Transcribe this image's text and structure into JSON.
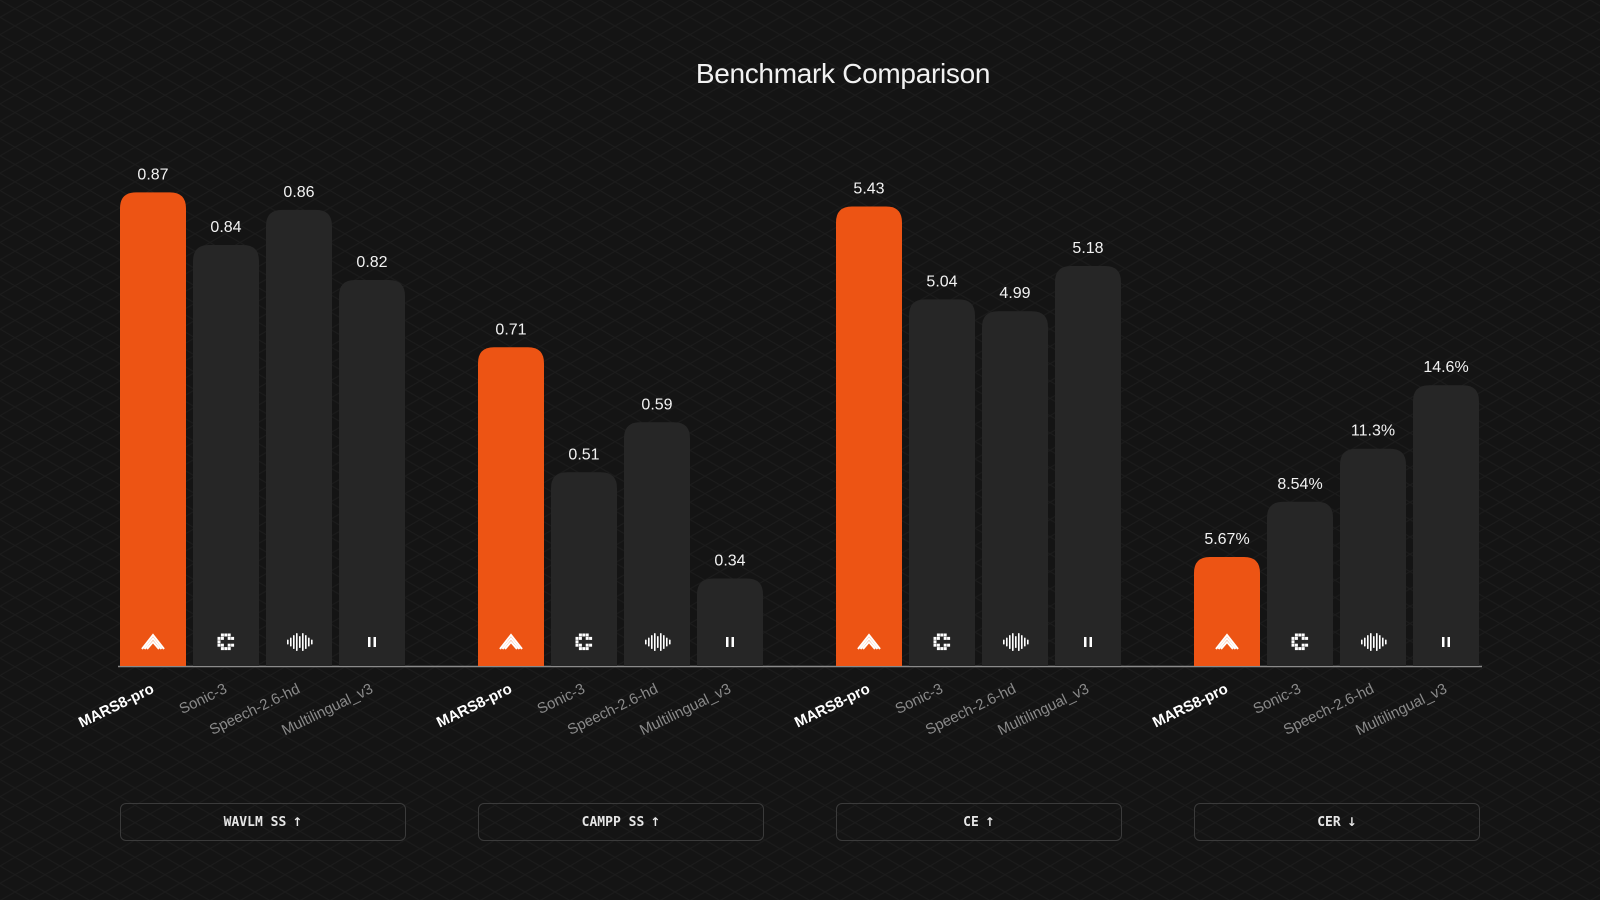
{
  "title": "Benchmark Comparison",
  "colors": {
    "highlight": "#ED5414",
    "bar": "#262626",
    "background": "#141414",
    "label_highlight": "#ffffff",
    "label_muted": "#8a8a8a"
  },
  "model_icons": [
    "chevron-stack-icon",
    "pixel-c-icon",
    "waveform-icon",
    "pause-icon"
  ],
  "chart_data": [
    {
      "type": "bar",
      "metric": "WAVLM SS",
      "direction": "↑",
      "categories": [
        "MARS8-pro",
        "Sonic-3",
        "Speech-2.6-hd",
        "Multilingual_v3"
      ],
      "values": [
        0.87,
        0.84,
        0.86,
        0.82
      ],
      "labels": [
        "0.87",
        "0.84",
        "0.86",
        "0.82"
      ],
      "ylim": [
        0.6,
        0.885
      ]
    },
    {
      "type": "bar",
      "metric": "CAMPP SS",
      "direction": "↑",
      "categories": [
        "MARS8-pro",
        "Sonic-3",
        "Speech-2.6-hd",
        "Multilingual_v3"
      ],
      "values": [
        0.71,
        0.51,
        0.59,
        0.34
      ],
      "labels": [
        "0.71",
        "0.51",
        "0.59",
        "0.34"
      ],
      "ylim": [
        0.2,
        1.0
      ]
    },
    {
      "type": "bar",
      "metric": "CE",
      "direction": "↑",
      "categories": [
        "MARS8-pro",
        "Sonic-3",
        "Speech-2.6-hd",
        "Multilingual_v3"
      ],
      "values": [
        5.43,
        5.04,
        4.99,
        5.18
      ],
      "labels": [
        "5.43",
        "5.04",
        "4.99",
        "5.18"
      ],
      "ylim": [
        3.5,
        5.6
      ]
    },
    {
      "type": "bar",
      "metric": "CER",
      "direction": "↓",
      "categories": [
        "MARS8-pro",
        "Sonic-3",
        "Speech-2.6-hd",
        "Multilingual_v3"
      ],
      "values": [
        5.67,
        8.54,
        11.3,
        14.6
      ],
      "labels": [
        "5.67%",
        "8.54%",
        "11.3%",
        "14.6%"
      ],
      "ylim": [
        0,
        26
      ]
    }
  ]
}
